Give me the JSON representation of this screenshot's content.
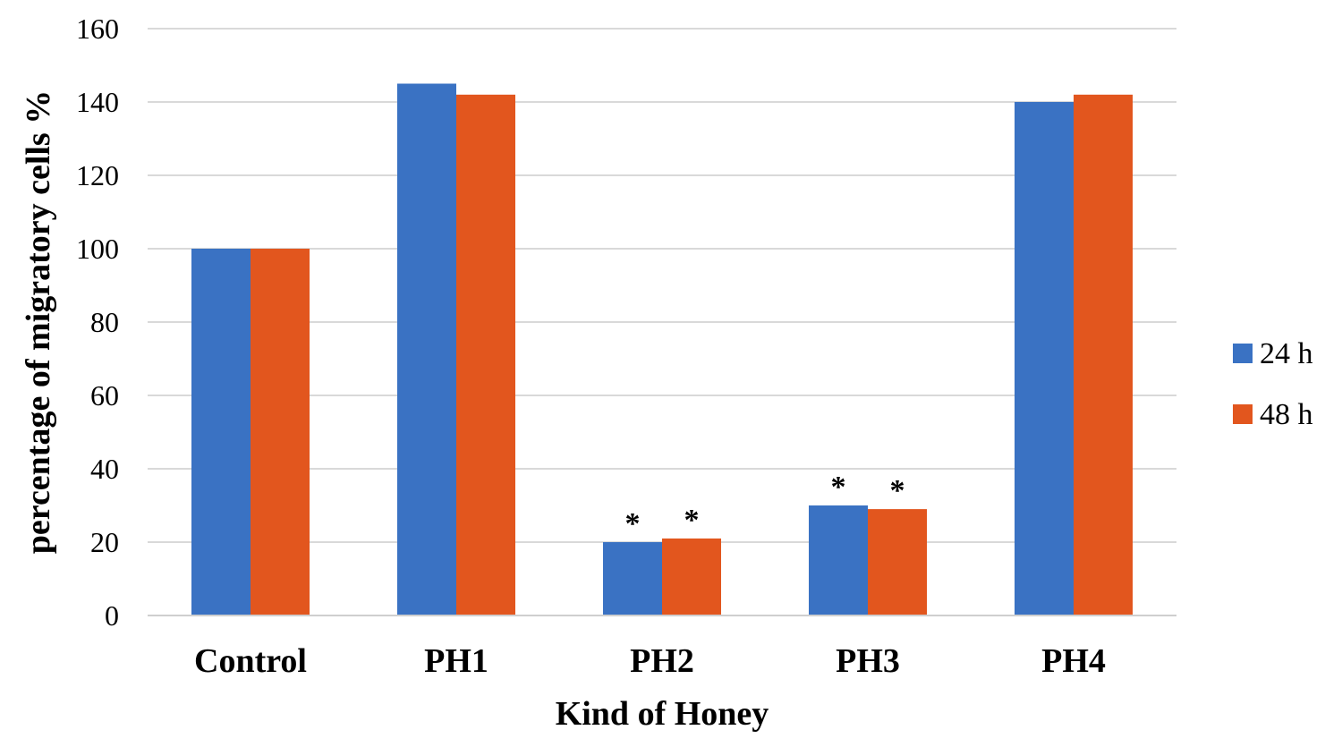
{
  "chart_data": {
    "type": "bar",
    "title": "",
    "xlabel": "Kind of Honey",
    "ylabel": "percentage of migratory cells %",
    "categories": [
      "Control",
      "PH1",
      "PH2",
      "PH3",
      "PH4"
    ],
    "series": [
      {
        "name": "24 h",
        "color": "#3a72c3",
        "values": [
          100,
          145,
          20,
          30,
          140
        ],
        "significance": [
          "",
          "",
          "*",
          "*",
          ""
        ]
      },
      {
        "name": "48 h",
        "color": "#e2561e",
        "values": [
          100,
          142,
          21,
          29,
          142
        ],
        "significance": [
          "",
          "",
          "*",
          "*",
          ""
        ]
      }
    ],
    "ylim": [
      0,
      160
    ],
    "yticks": [
      0,
      20,
      40,
      60,
      80,
      100,
      120,
      140,
      160
    ],
    "grid": true,
    "legend_position": "right"
  }
}
